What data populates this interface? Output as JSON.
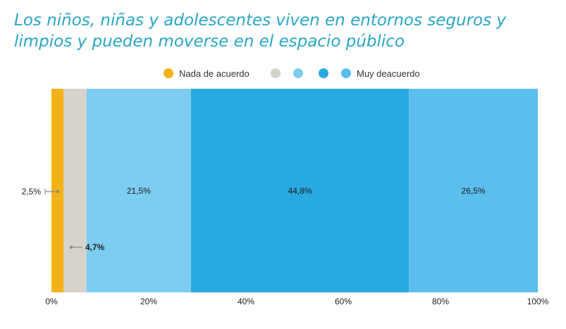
{
  "title": "Los niños, niñas y adolescentes viven en entornos seguros y limpios y pueden moverse en el espacio público",
  "legend": [
    {
      "label": "Nada de acuerdo",
      "color": "#f3b217"
    },
    {
      "label": "",
      "color": "#d7d3cc"
    },
    {
      "label": "",
      "color": "#7dcdf0"
    },
    {
      "label": "",
      "color": "#29a9e1"
    },
    {
      "label": "Muy deacuerdo",
      "color": "#5bbfee"
    }
  ],
  "chart_data": {
    "type": "bar",
    "orientation": "horizontal",
    "stacked": true,
    "categories": [
      ""
    ],
    "series": [
      {
        "name": "Nada de acuerdo",
        "values": [
          2.5
        ],
        "label": "2,5%",
        "color": "#f3b217"
      },
      {
        "values": [
          4.7
        ],
        "label": "4,7%",
        "color": "#d7d3cc"
      },
      {
        "values": [
          21.5
        ],
        "label": "21,5%",
        "color": "#7dcdf0"
      },
      {
        "values": [
          44.8
        ],
        "label": "44,8%",
        "color": "#29a9e1"
      },
      {
        "name": "Muy deacuerdo",
        "values": [
          26.5
        ],
        "label": "26,5%",
        "color": "#5bbfee"
      }
    ],
    "xlim": [
      0,
      100
    ],
    "x_ticks": [
      "0%",
      "20%",
      "40%",
      "60%",
      "80%",
      "100%"
    ],
    "grid": false,
    "legend_position": "top"
  }
}
